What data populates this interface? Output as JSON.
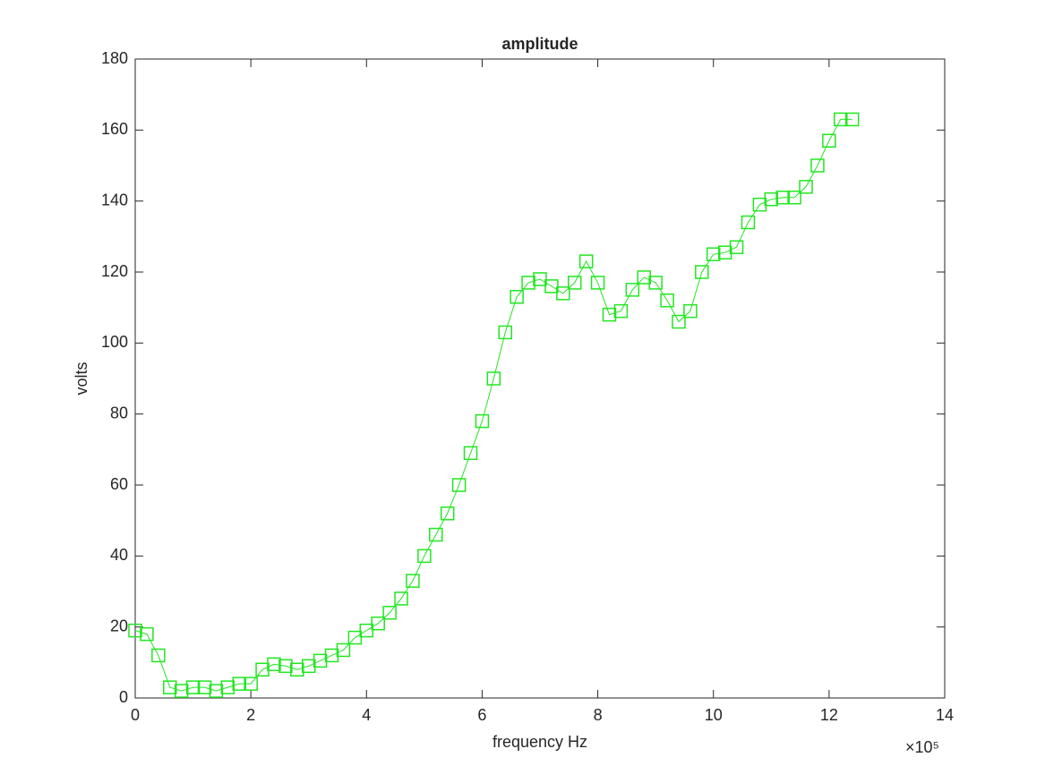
{
  "chart_data": {
    "type": "line",
    "title": "amplitude",
    "x_label": "frequency Hz",
    "y_label": "volts",
    "x_exponent_label": "×10⁵",
    "x": [
      0,
      0.2,
      0.4,
      0.6,
      0.8,
      1.0,
      1.2,
      1.4,
      1.6,
      1.8,
      2.0,
      2.2,
      2.4,
      2.6,
      2.8,
      3.0,
      3.2,
      3.4,
      3.6,
      3.8,
      4.0,
      4.2,
      4.4,
      4.6,
      4.8,
      5.0,
      5.2,
      5.4,
      5.6,
      5.8,
      6.0,
      6.2,
      6.4,
      6.6,
      6.8,
      7.0,
      7.2,
      7.4,
      7.6,
      7.8,
      8.0,
      8.2,
      8.4,
      8.6,
      8.8,
      9.0,
      9.2,
      9.4,
      9.6,
      9.8,
      10.0,
      10.2,
      10.4,
      10.6,
      10.8,
      11.0,
      11.2,
      11.4,
      11.6,
      11.8,
      12.0,
      12.2,
      12.4
    ],
    "series": [
      {
        "color": "#22e622",
        "marker": "square",
        "values": [
          19,
          18,
          12,
          3,
          2,
          3,
          3,
          2,
          3,
          4,
          4,
          8,
          9.5,
          9,
          8,
          9,
          10.5,
          12,
          13.5,
          17,
          19,
          21,
          24,
          28,
          33,
          40,
          46,
          52,
          60,
          69,
          78,
          90,
          103,
          113,
          117,
          118,
          116,
          114,
          117,
          123,
          117,
          108,
          109,
          115,
          118.5,
          117,
          112,
          106,
          109,
          120,
          125,
          125.5,
          127,
          134,
          139,
          140.5,
          141,
          141,
          144,
          150,
          157,
          163,
          163
        ]
      }
    ],
    "xlim": [
      0,
      14
    ],
    "xticks": [
      0,
      2,
      4,
      6,
      8,
      10,
      12,
      14
    ],
    "ylim": [
      0,
      180
    ],
    "yticks": [
      0,
      20,
      40,
      60,
      80,
      100,
      120,
      140,
      160,
      180
    ]
  }
}
